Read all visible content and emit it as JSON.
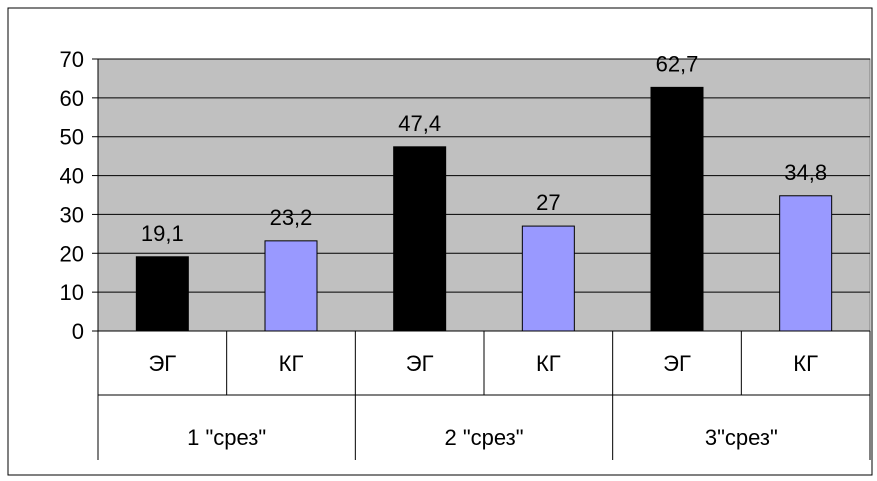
{
  "chart_data": {
    "type": "bar",
    "categories": [
      {
        "group": "1 \"срез\"",
        "label": "ЭГ",
        "value": 19.1,
        "display": "19,1",
        "series": 0
      },
      {
        "group": "1 \"срез\"",
        "label": "КГ",
        "value": 23.2,
        "display": "23,2",
        "series": 1
      },
      {
        "group": "2 \"срез\"",
        "label": "ЭГ",
        "value": 47.4,
        "display": "47,4",
        "series": 0
      },
      {
        "group": "2 \"срез\"",
        "label": "КГ",
        "value": 27,
        "display": "27",
        "series": 1
      },
      {
        "group": "3\"срез\"",
        "label": "ЭГ",
        "value": 62.7,
        "display": "62,7",
        "series": 0
      },
      {
        "group": "3\"срез\"",
        "label": "КГ",
        "value": 34.8,
        "display": "34,8",
        "series": 1
      }
    ],
    "groups": [
      "1 \"срез\"",
      "2 \"срез\"",
      "3\"срез\""
    ],
    "yticks": [
      "0",
      "10",
      "20",
      "30",
      "40",
      "50",
      "60",
      "70"
    ],
    "ylim": [
      0,
      70
    ],
    "grid": true,
    "legend": "none",
    "colors": {
      "series": [
        "#000000",
        "#9999ff"
      ],
      "plot_background": "#c0c0c0",
      "gridline": "#000000"
    }
  }
}
